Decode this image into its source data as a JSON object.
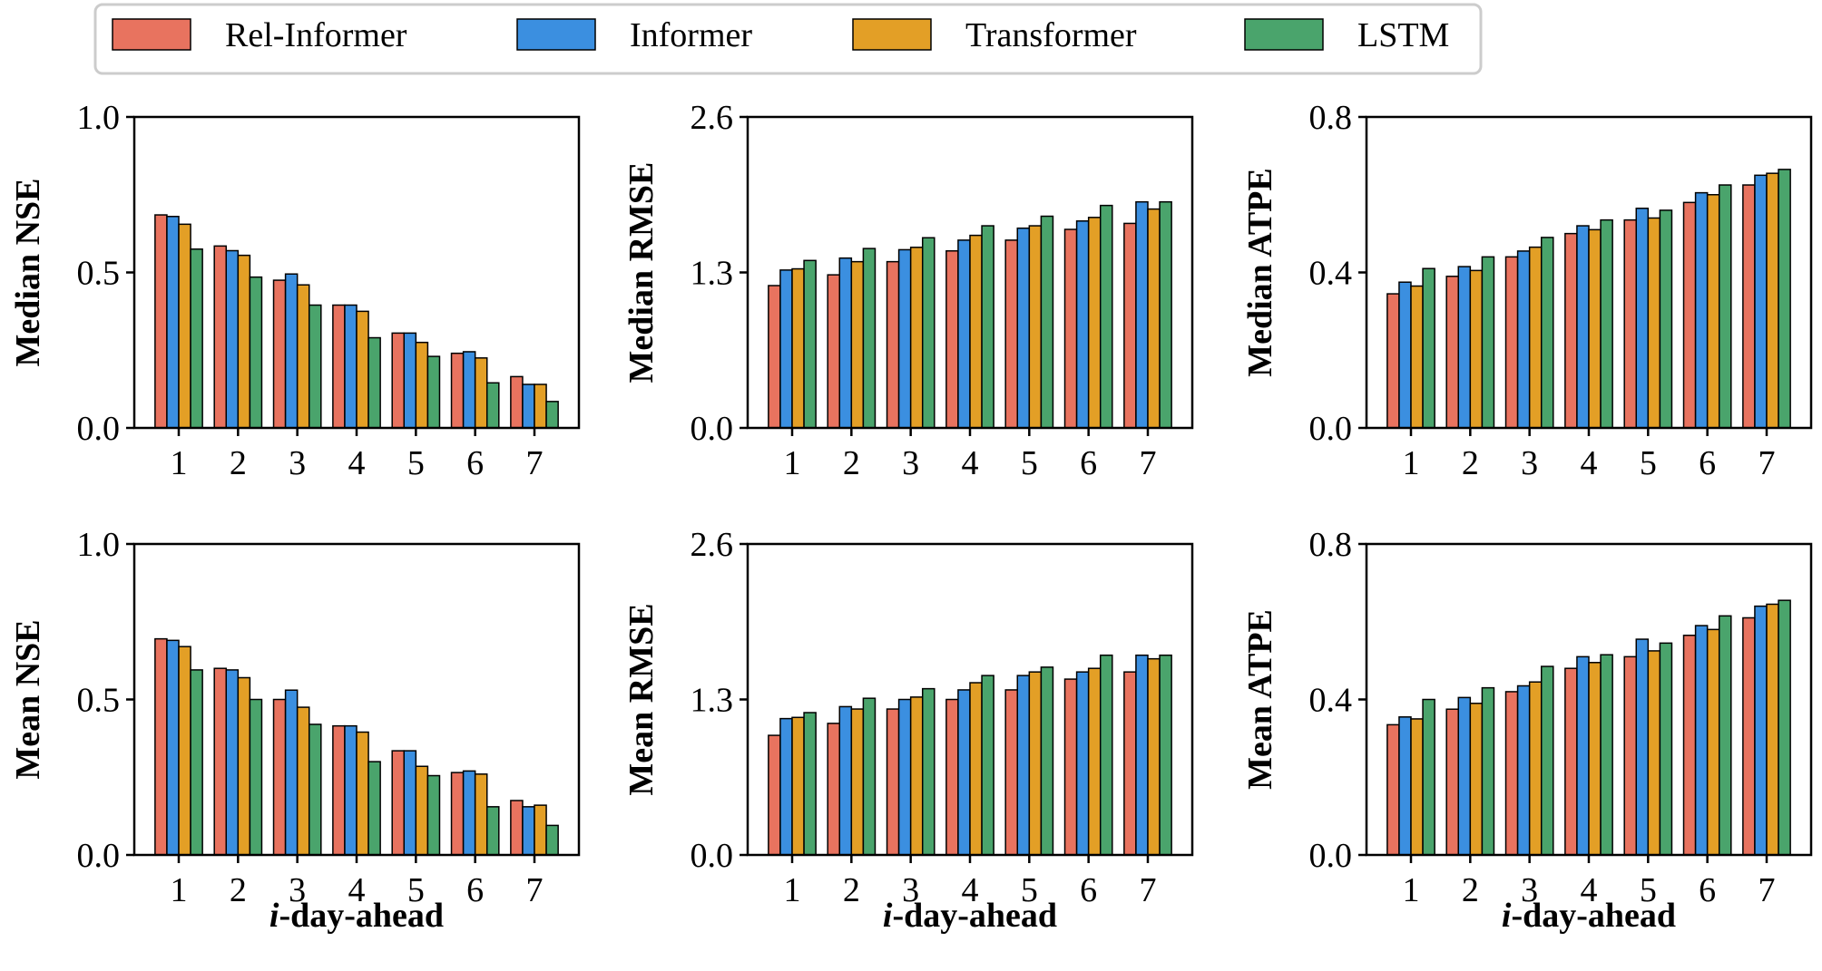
{
  "chart_data": {
    "type": "bar",
    "categories": [
      "1",
      "2",
      "3",
      "4",
      "5",
      "6",
      "7"
    ],
    "xlabel_italic": "i",
    "xlabel_rest": "-day-ahead",
    "legend": {
      "placement": "top",
      "entries": [
        {
          "name": "Rel-Informer",
          "color": "#e8735f"
        },
        {
          "name": "Informer",
          "color": "#3b8fe0"
        },
        {
          "name": "Transformer",
          "color": "#e39f26"
        },
        {
          "name": "LSTM",
          "color": "#4aa46c"
        }
      ]
    },
    "panels": [
      {
        "ylabel": "Median NSE",
        "ylim": [
          0,
          1.0
        ],
        "yticks": [
          "0.0",
          "0.5",
          "1.0"
        ],
        "series": [
          {
            "name": "Rel-Informer",
            "values": [
              0.685,
              0.585,
              0.475,
              0.395,
              0.305,
              0.24,
              0.165
            ]
          },
          {
            "name": "Informer",
            "values": [
              0.68,
              0.57,
              0.495,
              0.395,
              0.305,
              0.245,
              0.14
            ]
          },
          {
            "name": "Transformer",
            "values": [
              0.655,
              0.555,
              0.46,
              0.375,
              0.275,
              0.225,
              0.14
            ]
          },
          {
            "name": "LSTM",
            "values": [
              0.575,
              0.485,
              0.395,
              0.29,
              0.23,
              0.145,
              0.085
            ]
          }
        ]
      },
      {
        "ylabel": "Median RMSE",
        "ylim": [
          0,
          2.6
        ],
        "yticks": [
          "0.0",
          "1.3",
          "2.6"
        ],
        "series": [
          {
            "name": "Rel-Informer",
            "values": [
              1.19,
              1.28,
              1.39,
              1.48,
              1.57,
              1.66,
              1.71
            ]
          },
          {
            "name": "Informer",
            "values": [
              1.32,
              1.42,
              1.49,
              1.57,
              1.67,
              1.73,
              1.89
            ]
          },
          {
            "name": "Transformer",
            "values": [
              1.33,
              1.39,
              1.51,
              1.61,
              1.69,
              1.76,
              1.83
            ]
          },
          {
            "name": "LSTM",
            "values": [
              1.4,
              1.5,
              1.59,
              1.69,
              1.77,
              1.86,
              1.89
            ]
          }
        ]
      },
      {
        "ylabel": "Median ATPE",
        "ylim": [
          0,
          0.8
        ],
        "yticks": [
          "0.0",
          "0.4",
          "0.8"
        ],
        "series": [
          {
            "name": "Rel-Informer",
            "values": [
              0.345,
              0.39,
              0.44,
              0.5,
              0.535,
              0.58,
              0.625
            ]
          },
          {
            "name": "Informer",
            "values": [
              0.375,
              0.415,
              0.455,
              0.52,
              0.565,
              0.605,
              0.65
            ]
          },
          {
            "name": "Transformer",
            "values": [
              0.365,
              0.405,
              0.465,
              0.51,
              0.54,
              0.6,
              0.655
            ]
          },
          {
            "name": "LSTM",
            "values": [
              0.41,
              0.44,
              0.49,
              0.535,
              0.56,
              0.625,
              0.665
            ]
          }
        ]
      },
      {
        "ylabel": "Mean NSE",
        "ylim": [
          0,
          1.0
        ],
        "yticks": [
          "0.0",
          "0.5",
          "1.0"
        ],
        "series": [
          {
            "name": "Rel-Informer",
            "values": [
              0.695,
              0.6,
              0.5,
              0.415,
              0.335,
              0.265,
              0.175
            ]
          },
          {
            "name": "Informer",
            "values": [
              0.69,
              0.595,
              0.53,
              0.415,
              0.335,
              0.27,
              0.155
            ]
          },
          {
            "name": "Transformer",
            "values": [
              0.67,
              0.57,
              0.475,
              0.395,
              0.285,
              0.26,
              0.16
            ]
          },
          {
            "name": "LSTM",
            "values": [
              0.595,
              0.5,
              0.42,
              0.3,
              0.255,
              0.155,
              0.095
            ]
          }
        ]
      },
      {
        "ylabel": "Mean RMSE",
        "ylim": [
          0,
          2.6
        ],
        "yticks": [
          "0.0",
          "1.3",
          "2.6"
        ],
        "series": [
          {
            "name": "Rel-Informer",
            "values": [
              1.0,
              1.1,
              1.22,
              1.3,
              1.38,
              1.47,
              1.53
            ]
          },
          {
            "name": "Informer",
            "values": [
              1.14,
              1.24,
              1.3,
              1.38,
              1.5,
              1.53,
              1.67
            ]
          },
          {
            "name": "Transformer",
            "values": [
              1.15,
              1.22,
              1.32,
              1.44,
              1.53,
              1.56,
              1.64
            ]
          },
          {
            "name": "LSTM",
            "values": [
              1.19,
              1.31,
              1.39,
              1.5,
              1.57,
              1.67,
              1.67
            ]
          }
        ]
      },
      {
        "ylabel": "Mean ATPE",
        "ylim": [
          0,
          0.8
        ],
        "yticks": [
          "0.0",
          "0.4",
          "0.8"
        ],
        "series": [
          {
            "name": "Rel-Informer",
            "values": [
              0.335,
              0.375,
              0.42,
              0.48,
              0.51,
              0.565,
              0.61
            ]
          },
          {
            "name": "Informer",
            "values": [
              0.355,
              0.405,
              0.435,
              0.51,
              0.555,
              0.59,
              0.64
            ]
          },
          {
            "name": "Transformer",
            "values": [
              0.35,
              0.39,
              0.445,
              0.495,
              0.525,
              0.58,
              0.645
            ]
          },
          {
            "name": "LSTM",
            "values": [
              0.4,
              0.43,
              0.485,
              0.515,
              0.545,
              0.615,
              0.655
            ]
          }
        ]
      }
    ]
  }
}
